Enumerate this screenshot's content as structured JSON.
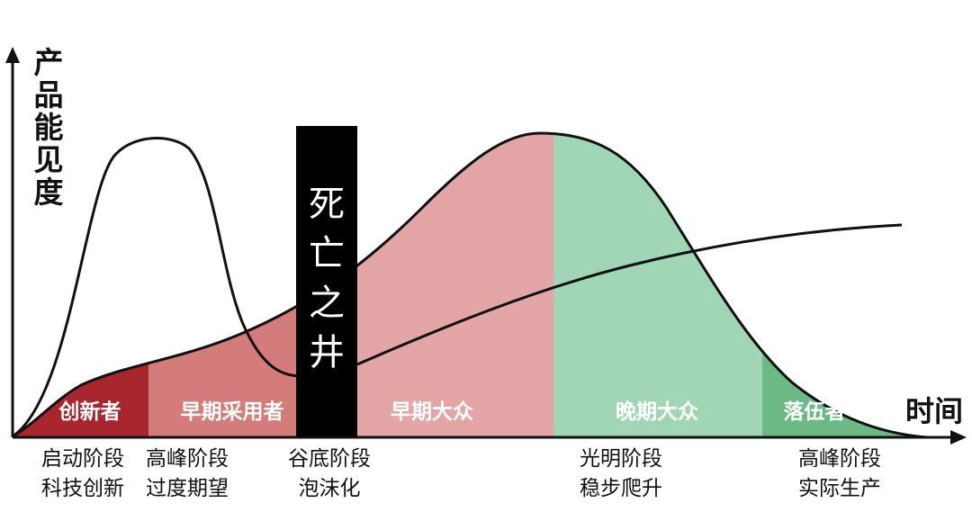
{
  "axes": {
    "y_label": "产\n品\n能\n见\n度",
    "x_label": "时间"
  },
  "death_well": {
    "label": "死\n亡\n之\n井"
  },
  "segments": [
    {
      "label": "创新者",
      "color": "#A8262D"
    },
    {
      "label": "早期采用者",
      "color": "#D47B7B"
    },
    {
      "label": "早期大众",
      "color": "#E3A5A5"
    },
    {
      "label": "晚期大众",
      "color": "#A0D6B6"
    },
    {
      "label": "落伍者",
      "color": "#6CB985"
    }
  ],
  "stages": [
    {
      "label": "启动阶段\n科技创新"
    },
    {
      "label": "高峰阶段\n过度期望"
    },
    {
      "label": "谷底阶段\n泡沫化"
    },
    {
      "label": "光明阶段\n稳步爬升"
    },
    {
      "label": "高峰阶段\n实际生产"
    }
  ]
}
